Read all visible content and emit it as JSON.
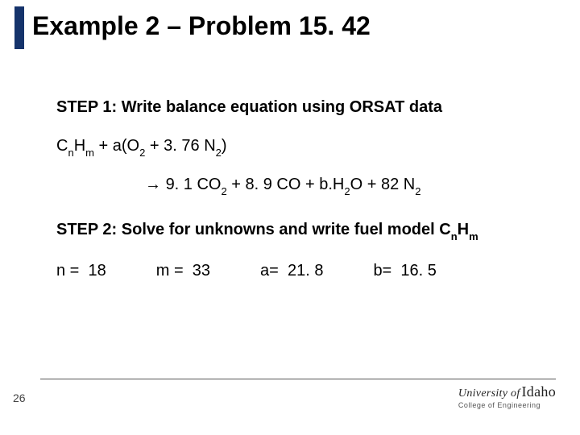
{
  "title": "Example 2 – Problem 15. 42",
  "step1_label": "STEP 1: Write balance equation using ORSAT data",
  "eq_left_coef": "3. 76",
  "eq_right_co2": "9. 1",
  "eq_right_co": "8. 9",
  "eq_right_n2": "82",
  "step2_label": "STEP 2: Solve for unknowns and write fuel model C",
  "vals": {
    "n_label": "n =",
    "n": "18",
    "m_label": "m =",
    "m": "33",
    "a_label": "a=",
    "a": "21. 8",
    "b_label": "b=",
    "b": "16. 5"
  },
  "page_number": "26",
  "logo_university_of": "University of",
  "logo_idaho": "Idaho",
  "logo_college": "College of Engineering",
  "arrow": "→"
}
